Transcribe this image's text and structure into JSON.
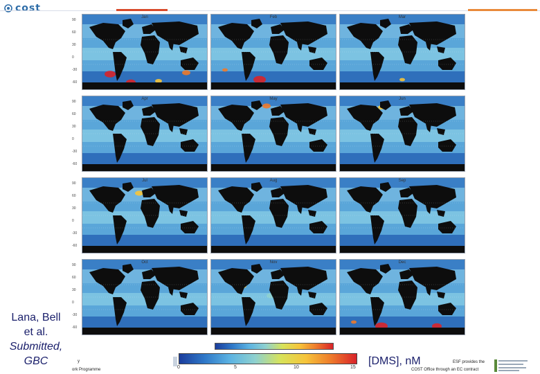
{
  "header": {
    "logo_text": "cost",
    "logo_icon": "cost-spiral-icon",
    "accent_colors": [
      "#d84a2b",
      "#e98a3a"
    ]
  },
  "maps": {
    "panel_count": 12,
    "rows": 4,
    "cols": 3,
    "month_labels": [
      "Jan",
      "Feb",
      "Mar",
      "Apr",
      "May",
      "Jun",
      "Jul",
      "Aug",
      "Sep",
      "Oct",
      "Nov",
      "Dec"
    ],
    "lat_labels": [
      "90",
      "60",
      "30",
      "0",
      "-30",
      "-60"
    ]
  },
  "caption": {
    "line1": "Lana, Bell",
    "line2": "et al.",
    "line3": "Submitted,",
    "line4": "GBC"
  },
  "colorbar": {
    "colors": [
      "#1b3d9c",
      "#2f78c8",
      "#5cb3e2",
      "#8fd1cf",
      "#d7e35a",
      "#f6c43a",
      "#ee7a2b",
      "#d9232a"
    ],
    "ticks": [
      "0",
      "5",
      "10",
      "15"
    ],
    "units": "[DMS], nM"
  },
  "footer": {
    "left1": "y",
    "left2": "ork Programme",
    "right1": "ESF provides the",
    "right2": "COST Office through an EC contract",
    "esf_logo": "esf-logo-icon"
  }
}
